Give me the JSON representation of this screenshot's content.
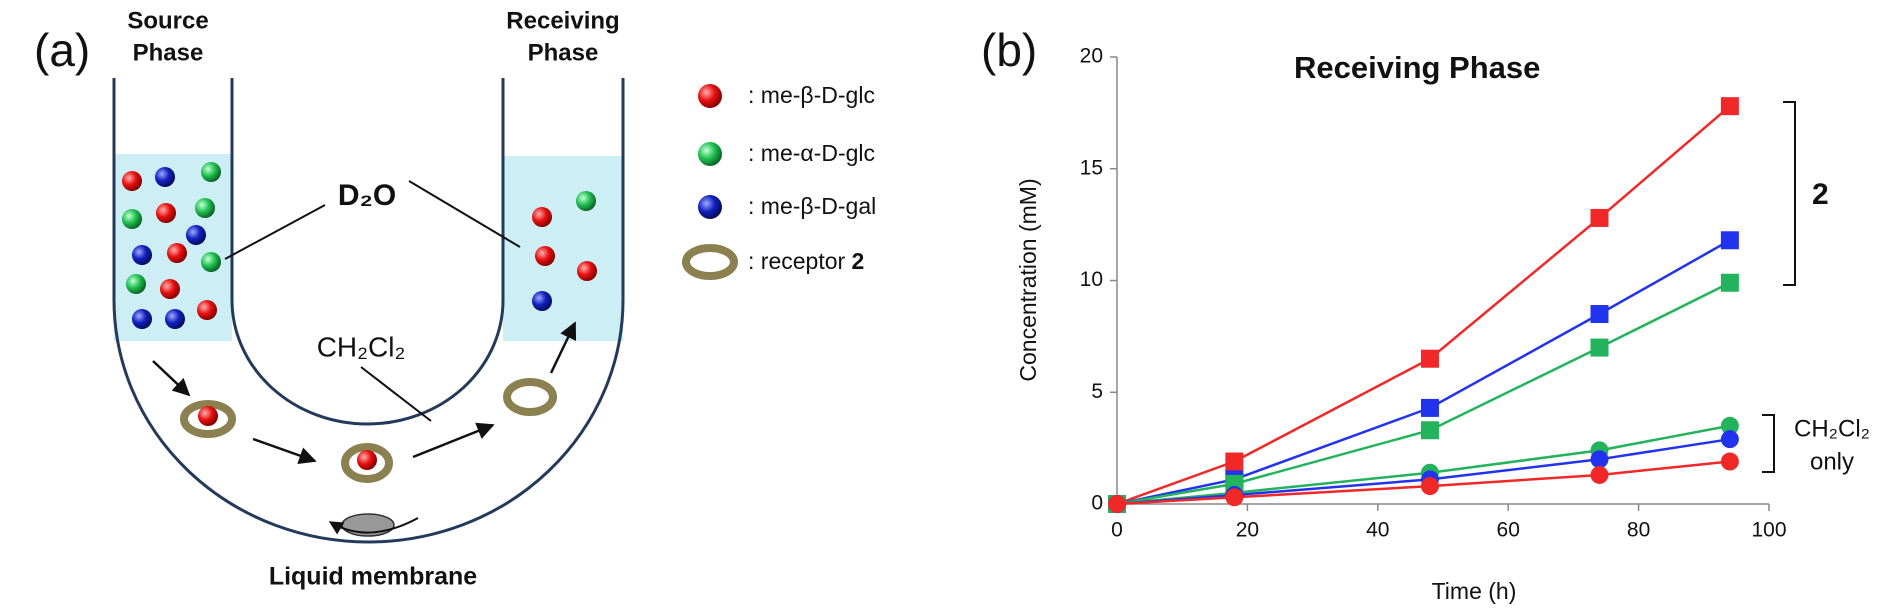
{
  "panel_labels": [
    "(a)",
    "(b)"
  ],
  "diagram": {
    "source_phase": [
      "Source",
      "Phase"
    ],
    "receiving_phase": [
      "Receiving",
      "Phase"
    ],
    "water": "D₂O",
    "organic": "CH₂Cl₂",
    "membrane": "Liquid membrane",
    "legend": [
      ": me-β-D-glc",
      ": me-α-D-glc",
      ": me-β-D-gal"
    ],
    "receptor_label": ": receptor",
    "receptor_number": "2"
  },
  "chart_data": {
    "type": "line",
    "title": "Receiving Phase",
    "x_label": "Time (h)",
    "y_label": "Concentration (mM)",
    "x": [
      0,
      18,
      48,
      74,
      94
    ],
    "series": [
      {
        "color": "#f02828",
        "marker": "square",
        "values": [
          0,
          1.9,
          6.5,
          12.8,
          17.8
        ]
      },
      {
        "color": "#2233ee",
        "marker": "square",
        "values": [
          0,
          1.1,
          4.3,
          8.5,
          11.8
        ]
      },
      {
        "color": "#22b35c",
        "marker": "square",
        "values": [
          0,
          0.9,
          3.3,
          7.0,
          9.9
        ]
      },
      {
        "color": "#22b35c",
        "marker": "circle",
        "values": [
          0,
          0.5,
          1.4,
          2.4,
          3.5
        ]
      },
      {
        "color": "#2233ee",
        "marker": "circle",
        "values": [
          0,
          0.4,
          1.1,
          2.0,
          2.9
        ]
      },
      {
        "color": "#f02828",
        "marker": "circle",
        "values": [
          0,
          0.3,
          0.8,
          1.3,
          1.9
        ]
      }
    ],
    "xlim": [
      0,
      100
    ],
    "xticks": [
      0,
      20,
      40,
      60,
      80,
      100
    ],
    "ylim": [
      0,
      20
    ],
    "yticks": [
      0,
      5,
      10,
      15,
      20
    ],
    "grid": false,
    "group_labels": [
      "2",
      "CH₂Cl₂",
      "only"
    ]
  }
}
